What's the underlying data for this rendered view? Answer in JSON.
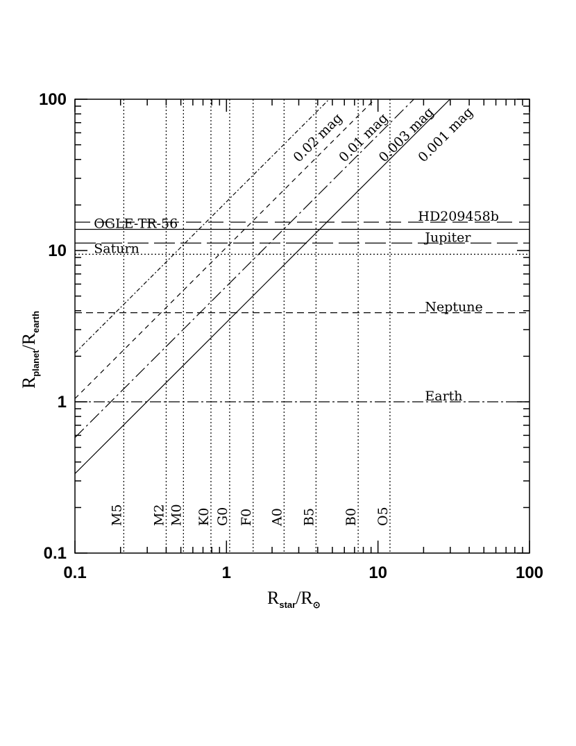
{
  "chart_data": {
    "type": "line",
    "title": "",
    "xscale": "log",
    "yscale": "log",
    "xlim": [
      0.1,
      100
    ],
    "ylim": [
      0.1,
      100
    ],
    "xlabel": {
      "main": "R",
      "sub": "star",
      "sep": "/R",
      "sub2": "⊙"
    },
    "ylabel": {
      "main": "R",
      "sub": "planet",
      "sep": "/R",
      "sub2": "earth"
    },
    "x_ticks": [
      {
        "value": 0.1,
        "label": "0.1"
      },
      {
        "value": 1,
        "label": "1"
      },
      {
        "value": 10,
        "label": "10"
      },
      {
        "value": 100,
        "label": "100"
      }
    ],
    "y_ticks": [
      {
        "value": 0.1,
        "label": "0.1"
      },
      {
        "value": 1,
        "label": "1"
      },
      {
        "value": 10,
        "label": "10"
      },
      {
        "value": 100,
        "label": "100"
      }
    ],
    "depth_series": [
      {
        "name": "0.02 mag",
        "values_at_rstar_0p1": 2.1,
        "label": {
          "x": 3.0,
          "y": 38
        }
      },
      {
        "name": "0.01 mag",
        "values_at_rstar_0p1": 1.05,
        "label": {
          "x": 6.0,
          "y": 38
        }
      },
      {
        "name": "0.003 mag",
        "values_at_rstar_0p1": 0.58,
        "label": {
          "x": 11.0,
          "y": 38
        }
      },
      {
        "name": "0.001 mag",
        "values_at_rstar_0p1": 0.335,
        "label": {
          "x": 20.0,
          "y": 38
        }
      }
    ],
    "planets": [
      {
        "name": "HD209458b",
        "r_planet": 15.4,
        "label_x": 18
      },
      {
        "name": "OGLE-TR-56",
        "r_planet": 13.8,
        "label_x": 0.115
      },
      {
        "name": "Jupiter",
        "r_planet": 11.2,
        "label_x": 20
      },
      {
        "name": "Saturn",
        "r_planet": 9.45,
        "label_x": 0.115
      },
      {
        "name": "Neptune",
        "r_planet": 3.88,
        "label_x": 20
      },
      {
        "name": "Earth",
        "r_planet": 1.0,
        "label_x": 20
      }
    ],
    "spectral_types": [
      {
        "name": "M5",
        "r_star": 0.21
      },
      {
        "name": "M2",
        "r_star": 0.4
      },
      {
        "name": "M0",
        "r_star": 0.52
      },
      {
        "name": "K0",
        "r_star": 0.79
      },
      {
        "name": "G0",
        "r_star": 1.05
      },
      {
        "name": "F0",
        "r_star": 1.5
      },
      {
        "name": "A0",
        "r_star": 2.4
      },
      {
        "name": "B5",
        "r_star": 3.9
      },
      {
        "name": "B0",
        "r_star": 7.4
      },
      {
        "name": "O5",
        "r_star": 12.0
      }
    ],
    "grid": false,
    "legend": "none"
  }
}
